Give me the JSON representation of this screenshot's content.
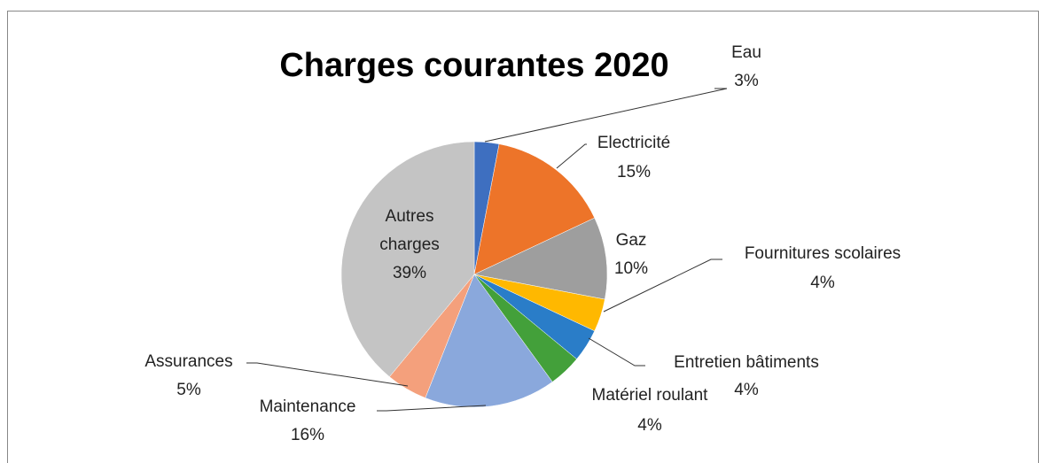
{
  "chart_data": {
    "type": "pie",
    "title": "Charges courantes 2020",
    "categories": [
      "Eau",
      "Electricité",
      "Gaz",
      "Fournitures scolaires",
      "Entretien bâtiments",
      "Matériel roulant",
      "Maintenance",
      "Assurances",
      "Autres charges"
    ],
    "values": [
      3,
      15,
      10,
      4,
      4,
      4,
      16,
      5,
      39
    ],
    "value_labels": [
      "3%",
      "15%",
      "10%",
      "4%",
      "4%",
      "4%",
      "16%",
      "5%",
      "39%"
    ],
    "colors": [
      "#3e6fc0",
      "#ed7429",
      "#9e9e9e",
      "#ffb800",
      "#2a7dc8",
      "#43a03a",
      "#8aa8dc",
      "#f4a07c",
      "#c4c4c4"
    ]
  }
}
